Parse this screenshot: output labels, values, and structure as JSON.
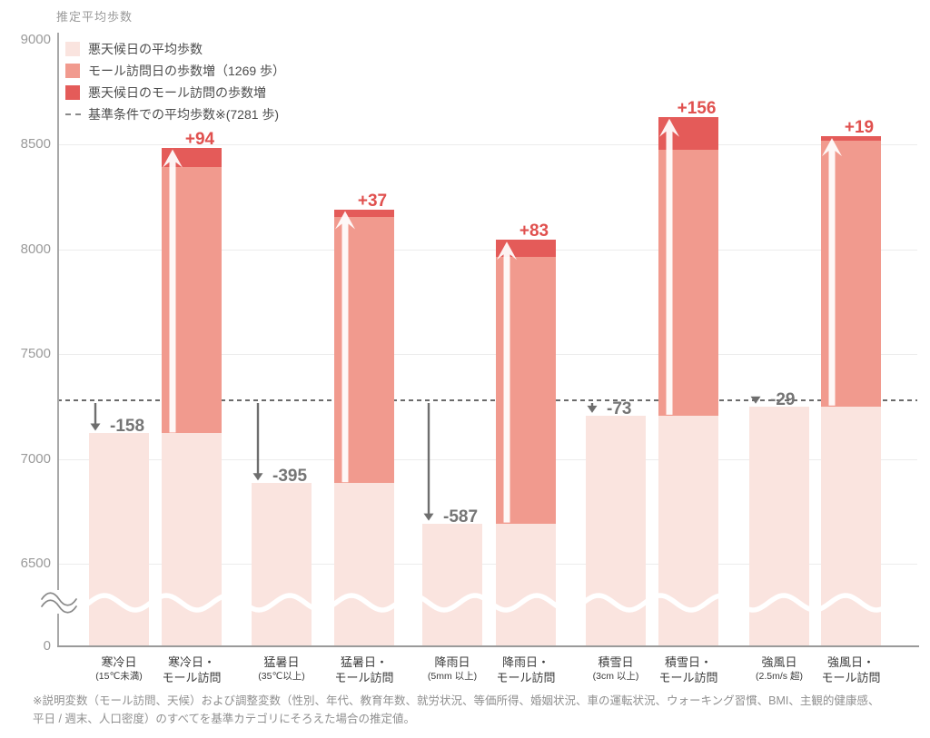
{
  "title": "推定平均歩数",
  "legend": {
    "items": [
      {
        "label": "悪天候日の平均歩数",
        "swatch": "bar_light"
      },
      {
        "label": "モール訪問日の歩数増（1269 歩）",
        "swatch": "bar_mall"
      },
      {
        "label": "悪天候日のモール訪問の歩数増",
        "swatch": "bar_badweather_mall"
      },
      {
        "label": "基準条件での平均歩数※(7281 歩)",
        "swatch": "dashed"
      }
    ]
  },
  "footnote": {
    "line1": "※説明変数（モール訪問、天候）および調整変数（性別、年代、教育年数、就労状況、等価所得、婚姻状況、車の運転状況、ウォーキング習慣、BMI、主観的健康感、",
    "line2": "平日 / 週末、人口密度）のすべてを基準カテゴリにそろえた場合の推定値。"
  },
  "colors": {
    "bar_light": "#fae4df",
    "bar_mall": "#f19a8e",
    "bar_badweather_mall": "#e45b59",
    "annotation_positive": "#e0504e",
    "annotation_negative": "#757575",
    "arrow_down": "#6e6e6e",
    "arrow_up": "rgba(255,255,255,0.93)",
    "baseline_dash": "#6b6b6b"
  },
  "chart_data": {
    "type": "bar",
    "title": "推定平均歩数",
    "ylabel": "推定平均歩数",
    "yticks": [
      9000,
      8500,
      8000,
      7500,
      7000,
      6500
    ],
    "y_zero_label": "0",
    "axis_break": true,
    "grid": true,
    "baseline_steps": 7281,
    "mall_visit_increase_steps": 1269,
    "legend_position": "top-left",
    "bars": [
      {
        "category": "寒冷日",
        "condition": "(15℃未満)",
        "kind": "weather",
        "delta_vs_baseline": -158,
        "steps": 7123
      },
      {
        "category": "寒冷日・",
        "condition": "モール訪問",
        "kind": "mall",
        "extra_mall_delta": 94,
        "weather_steps": 7123,
        "total_steps": 8486
      },
      {
        "category": "猛暑日",
        "condition": "(35℃以上)",
        "kind": "weather",
        "delta_vs_baseline": -395,
        "steps": 6886
      },
      {
        "category": "猛暑日・",
        "condition": "モール訪問",
        "kind": "mall",
        "extra_mall_delta": 37,
        "weather_steps": 6886,
        "total_steps": 8192
      },
      {
        "category": "降雨日",
        "condition": "(5mm 以上)",
        "kind": "weather",
        "delta_vs_baseline": -587,
        "steps": 6694
      },
      {
        "category": "降雨日・",
        "condition": "モール訪問",
        "kind": "mall",
        "extra_mall_delta": 83,
        "weather_steps": 6694,
        "total_steps": 8046
      },
      {
        "category": "積雪日",
        "condition": "(3cm 以上)",
        "kind": "weather",
        "delta_vs_baseline": -73,
        "steps": 7208
      },
      {
        "category": "積雪日・",
        "condition": "モール訪問",
        "kind": "mall",
        "extra_mall_delta": 156,
        "weather_steps": 7208,
        "total_steps": 8633
      },
      {
        "category": "強風日",
        "condition": "(2.5m/s 超)",
        "kind": "weather",
        "delta_vs_baseline": -29,
        "steps": 7252
      },
      {
        "category": "強風日・",
        "condition": "モール訪問",
        "kind": "mall",
        "extra_mall_delta": 19,
        "weather_steps": 7252,
        "total_steps": 8540
      }
    ]
  }
}
